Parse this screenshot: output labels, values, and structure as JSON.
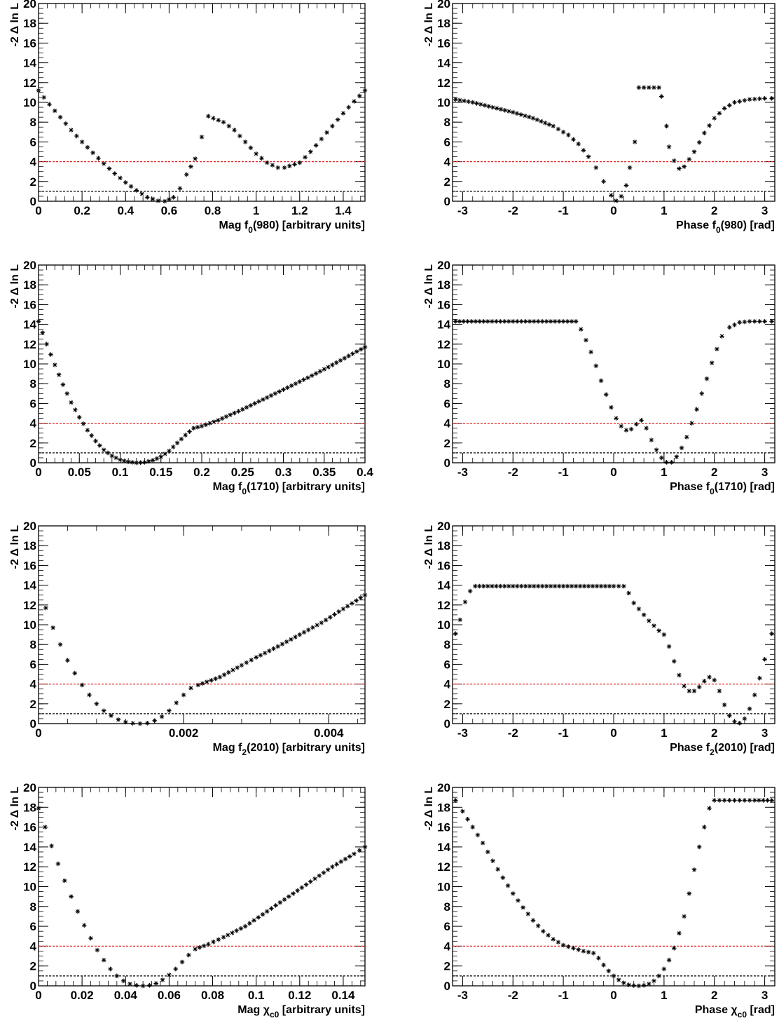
{
  "chart_data": [
    {
      "type": "scatter",
      "xlabel": "Mag f0(980) [arbitrary units]",
      "xlabel_parts": [
        "Mag f",
        "0",
        "(980) [arbitrary units]"
      ],
      "ylabel": "-2 Δ ln L",
      "xlim": [
        0,
        1.5
      ],
      "ylim": [
        0,
        20
      ],
      "xticks": [
        0,
        0.2,
        0.4,
        0.6,
        0.8,
        1,
        1.2,
        1.4
      ],
      "xtick_labels": [
        "0",
        "0.2",
        "0.4",
        "0.6",
        "0.8",
        "1",
        "1.2",
        "1.4"
      ],
      "yticks": [
        0,
        2,
        4,
        6,
        8,
        10,
        12,
        14,
        16,
        18,
        20
      ],
      "ytick_labels": [
        "0",
        "2",
        "4",
        "6",
        "8",
        "10",
        "12",
        "14",
        "16",
        "18",
        "20"
      ],
      "reference_lines": [
        {
          "y": 4,
          "color": "#e02020",
          "style": "dashed"
        },
        {
          "y": 1,
          "color": "#000000",
          "style": "dashed"
        }
      ],
      "series": [
        {
          "x": [
            0,
            0.05,
            0.1,
            0.15,
            0.2,
            0.25,
            0.3,
            0.35,
            0.4,
            0.45,
            0.5,
            0.55,
            0.58,
            0.62,
            0.65,
            0.68,
            0.72,
            0.75,
            0.78,
            0.85,
            0.9,
            0.95,
            1.0,
            1.05,
            1.1,
            1.13,
            1.2,
            1.25,
            1.3,
            1.35,
            1.4,
            1.45,
            1.5
          ],
          "y": [
            11.2,
            9.8,
            8.5,
            7.2,
            6.0,
            4.9,
            3.8,
            2.8,
            1.9,
            1.1,
            0.4,
            0.05,
            0.0,
            0.4,
            1.3,
            2.7,
            4.3,
            6.5,
            8.6,
            8.0,
            7.2,
            6.0,
            4.8,
            3.9,
            3.4,
            3.4,
            3.9,
            5.0,
            6.3,
            7.6,
            8.9,
            10.1,
            11.2
          ]
        }
      ]
    },
    {
      "type": "scatter",
      "xlabel": "Phase f0(980) [rad]",
      "xlabel_parts": [
        "Phase f",
        "0",
        "(980) [rad]"
      ],
      "ylabel": "-2 Δ ln L",
      "xlim": [
        -3.2,
        3.2
      ],
      "ylim": [
        0,
        20
      ],
      "xticks": [
        -3,
        -2,
        -1,
        0,
        1,
        2,
        3
      ],
      "xtick_labels": [
        "-3",
        "-2",
        "-1",
        "0",
        "1",
        "2",
        "3"
      ],
      "yticks": [
        0,
        2,
        4,
        6,
        8,
        10,
        12,
        14,
        16,
        18,
        20
      ],
      "ytick_labels": [
        "0",
        "2",
        "4",
        "6",
        "8",
        "10",
        "12",
        "14",
        "16",
        "18",
        "20"
      ],
      "reference_lines": [
        {
          "y": 4,
          "color": "#e02020",
          "style": "dashed"
        },
        {
          "y": 1,
          "color": "#000000",
          "style": "dashed"
        }
      ],
      "series": [
        {
          "x": [
            -3.14,
            -2.8,
            -2.4,
            -2.0,
            -1.6,
            -1.2,
            -0.9,
            -0.7,
            -0.5,
            -0.35,
            -0.2,
            -0.05,
            0.05,
            0.15,
            0.25,
            0.32,
            0.42,
            0.5,
            0.6,
            0.7,
            0.8,
            0.9,
            0.95,
            1.05,
            1.1,
            1.2,
            1.3,
            1.4,
            1.6,
            1.8,
            2.0,
            2.2,
            2.4,
            2.7,
            3.0,
            3.14
          ],
          "y": [
            10.3,
            10.0,
            9.5,
            9.0,
            8.4,
            7.6,
            6.7,
            5.8,
            4.5,
            3.4,
            2.0,
            0.6,
            0.05,
            0.5,
            1.6,
            3.4,
            6.0,
            11.5,
            11.5,
            11.5,
            11.5,
            11.5,
            10.6,
            7.6,
            5.5,
            4.1,
            3.3,
            3.5,
            5.0,
            6.9,
            8.4,
            9.4,
            10.0,
            10.3,
            10.4,
            10.4
          ]
        }
      ]
    },
    {
      "type": "scatter",
      "xlabel": "Mag f0(1710) [arbitrary units]",
      "xlabel_parts": [
        "Mag f",
        "0",
        "(1710) [arbitrary units]"
      ],
      "ylabel": "-2 Δ ln L",
      "xlim": [
        0,
        0.4
      ],
      "ylim": [
        0,
        20
      ],
      "xticks": [
        0,
        0.05,
        0.1,
        0.15,
        0.2,
        0.25,
        0.3,
        0.35,
        0.4
      ],
      "xtick_labels": [
        "0",
        "0.05",
        "0.1",
        "0.15",
        "0.2",
        "0.25",
        "0.3",
        "0.35",
        "0.4"
      ],
      "yticks": [
        0,
        2,
        4,
        6,
        8,
        10,
        12,
        14,
        16,
        18,
        20
      ],
      "ytick_labels": [
        "0",
        "2",
        "4",
        "6",
        "8",
        "10",
        "12",
        "14",
        "16",
        "18",
        "20"
      ],
      "reference_lines": [
        {
          "y": 4,
          "color": "#e02020",
          "style": "dashed"
        },
        {
          "y": 1,
          "color": "#000000",
          "style": "dashed"
        }
      ],
      "series": [
        {
          "x": [
            0,
            0.01,
            0.02,
            0.03,
            0.04,
            0.05,
            0.06,
            0.07,
            0.08,
            0.09,
            0.1,
            0.11,
            0.12,
            0.13,
            0.14,
            0.15,
            0.16,
            0.17,
            0.18,
            0.19,
            0.2,
            0.22,
            0.25,
            0.28,
            0.3,
            0.33,
            0.36,
            0.38,
            0.4
          ],
          "y": [
            14.3,
            12.0,
            9.9,
            7.9,
            6.1,
            4.6,
            3.3,
            2.2,
            1.3,
            0.7,
            0.3,
            0.1,
            0.0,
            0.05,
            0.25,
            0.6,
            1.2,
            2.0,
            2.8,
            3.5,
            3.7,
            4.3,
            5.4,
            6.6,
            7.4,
            8.6,
            9.9,
            10.8,
            11.7
          ]
        }
      ]
    },
    {
      "type": "scatter",
      "xlabel": "Phase f0(1710) [rad]",
      "xlabel_parts": [
        "Phase f",
        "0",
        "(1710) [rad]"
      ],
      "ylabel": "-2 Δ ln L",
      "xlim": [
        -3.2,
        3.2
      ],
      "ylim": [
        0,
        20
      ],
      "xticks": [
        -3,
        -2,
        -1,
        0,
        1,
        2,
        3
      ],
      "xtick_labels": [
        "-3",
        "-2",
        "-1",
        "0",
        "1",
        "2",
        "3"
      ],
      "yticks": [
        0,
        2,
        4,
        6,
        8,
        10,
        12,
        14,
        16,
        18,
        20
      ],
      "ytick_labels": [
        "0",
        "2",
        "4",
        "6",
        "8",
        "10",
        "12",
        "14",
        "16",
        "18",
        "20"
      ],
      "reference_lines": [
        {
          "y": 4,
          "color": "#e02020",
          "style": "dashed"
        },
        {
          "y": 1,
          "color": "#000000",
          "style": "dashed"
        }
      ],
      "series": [
        {
          "x": [
            -3.14,
            -2.5,
            -2.0,
            -1.5,
            -1.0,
            -0.75,
            -0.65,
            -0.55,
            -0.45,
            -0.35,
            -0.25,
            -0.15,
            -0.05,
            0.05,
            0.15,
            0.25,
            0.35,
            0.45,
            0.55,
            0.65,
            0.75,
            0.85,
            0.95,
            1.05,
            1.15,
            1.25,
            1.35,
            1.45,
            1.55,
            1.65,
            1.75,
            1.85,
            1.95,
            2.05,
            2.15,
            2.3,
            2.5,
            2.7,
            3.0,
            3.14
          ],
          "y": [
            14.3,
            14.3,
            14.3,
            14.3,
            14.3,
            14.3,
            13.5,
            12.4,
            11.2,
            9.8,
            8.3,
            6.9,
            5.6,
            4.5,
            3.7,
            3.3,
            3.4,
            3.9,
            4.3,
            3.5,
            2.3,
            1.3,
            0.5,
            0.05,
            0.05,
            0.6,
            1.5,
            2.6,
            4.0,
            5.4,
            7.0,
            8.5,
            10.1,
            11.5,
            12.8,
            13.7,
            14.2,
            14.3,
            14.3,
            14.3
          ]
        }
      ]
    },
    {
      "type": "scatter",
      "xlabel": "Mag f2(2010) [arbitrary units]",
      "xlabel_parts": [
        "Mag f",
        "2",
        "(2010) [arbitrary units]"
      ],
      "ylabel": "-2 Δ ln L",
      "xlim": [
        0,
        0.0045
      ],
      "ylim": [
        0,
        20
      ],
      "xticks": [
        0,
        0.002,
        0.004
      ],
      "xtick_labels": [
        "0",
        "0.002",
        "0.004"
      ],
      "yticks": [
        0,
        2,
        4,
        6,
        8,
        10,
        12,
        14,
        16,
        18,
        20
      ],
      "ytick_labels": [
        "0",
        "2",
        "4",
        "6",
        "8",
        "10",
        "12",
        "14",
        "16",
        "18",
        "20"
      ],
      "reference_lines": [
        {
          "y": 4,
          "color": "#e02020",
          "style": "dashed"
        },
        {
          "y": 1,
          "color": "#000000",
          "style": "dashed"
        }
      ],
      "series": [
        {
          "x": [
            0.0001,
            0.0002,
            0.0003,
            0.0004,
            0.0005,
            0.0006,
            0.0007,
            0.0008,
            0.0009,
            0.001,
            0.0011,
            0.0012,
            0.0013,
            0.0014,
            0.0015,
            0.0016,
            0.0017,
            0.0018,
            0.0019,
            0.002,
            0.0021,
            0.0022,
            0.0025,
            0.0028,
            0.003,
            0.0033,
            0.0036,
            0.0039,
            0.0042,
            0.0045
          ],
          "y": [
            11.7,
            9.7,
            8.0,
            6.4,
            5.1,
            3.9,
            2.9,
            2.0,
            1.3,
            0.8,
            0.4,
            0.15,
            0.03,
            0.0,
            0.05,
            0.3,
            0.7,
            1.3,
            2.1,
            2.9,
            3.6,
            3.9,
            4.7,
            5.9,
            6.7,
            7.8,
            9.0,
            10.2,
            11.6,
            13.0
          ]
        }
      ]
    },
    {
      "type": "scatter",
      "xlabel": "Phase f2(2010) [rad]",
      "xlabel_parts": [
        "Phase f",
        "2",
        "(2010) [rad]"
      ],
      "ylabel": "-2 Δ ln L",
      "xlim": [
        -3.2,
        3.2
      ],
      "ylim": [
        0,
        20
      ],
      "xticks": [
        -3,
        -2,
        -1,
        0,
        1,
        2,
        3
      ],
      "xtick_labels": [
        "-3",
        "-2",
        "-1",
        "0",
        "1",
        "2",
        "3"
      ],
      "yticks": [
        0,
        2,
        4,
        6,
        8,
        10,
        12,
        14,
        16,
        18,
        20
      ],
      "ytick_labels": [
        "0",
        "2",
        "4",
        "6",
        "8",
        "10",
        "12",
        "14",
        "16",
        "18",
        "20"
      ],
      "reference_lines": [
        {
          "y": 4,
          "color": "#e02020",
          "style": "dashed"
        },
        {
          "y": 1,
          "color": "#000000",
          "style": "dashed"
        }
      ],
      "series": [
        {
          "x": [
            -3.14,
            -3.05,
            -2.95,
            -2.85,
            -2.75,
            -2.5,
            -2.0,
            -1.5,
            -1.0,
            -0.5,
            0.0,
            0.2,
            0.3,
            0.4,
            0.5,
            0.6,
            0.7,
            0.8,
            0.9,
            1.0,
            1.1,
            1.2,
            1.3,
            1.4,
            1.5,
            1.6,
            1.7,
            1.8,
            1.9,
            2.0,
            2.1,
            2.2,
            2.3,
            2.4,
            2.5,
            2.6,
            2.7,
            2.8,
            2.9,
            3.0,
            3.14
          ],
          "y": [
            9.1,
            10.5,
            12.3,
            13.4,
            13.9,
            13.9,
            13.9,
            13.9,
            13.9,
            13.9,
            13.9,
            13.9,
            13.2,
            12.2,
            11.6,
            11.0,
            10.4,
            9.9,
            9.4,
            9.0,
            7.8,
            6.3,
            4.9,
            3.8,
            3.3,
            3.3,
            3.7,
            4.3,
            4.7,
            4.4,
            3.3,
            1.9,
            0.8,
            0.2,
            0.05,
            0.5,
            1.5,
            2.9,
            4.6,
            6.5,
            9.1
          ]
        }
      ]
    },
    {
      "type": "scatter",
      "xlabel": "Mag χc0 [arbitrary units]",
      "xlabel_parts": [
        "Mag χ",
        "c0",
        " [arbitrary units]"
      ],
      "ylabel": "-2 Δ ln L",
      "xlim": [
        0,
        0.15
      ],
      "ylim": [
        0,
        20
      ],
      "xticks": [
        0,
        0.02,
        0.04,
        0.06,
        0.08,
        0.1,
        0.12,
        0.14
      ],
      "xtick_labels": [
        "0",
        "0.02",
        "0.04",
        "0.06",
        "0.08",
        "0.1",
        "0.12",
        "0.14"
      ],
      "yticks": [
        0,
        2,
        4,
        6,
        8,
        10,
        12,
        14,
        16,
        18,
        20
      ],
      "ytick_labels": [
        "0",
        "2",
        "4",
        "6",
        "8",
        "10",
        "12",
        "14",
        "16",
        "18",
        "20"
      ],
      "reference_lines": [
        {
          "y": 4,
          "color": "#e02020",
          "style": "dashed"
        },
        {
          "y": 1,
          "color": "#000000",
          "style": "dashed"
        }
      ],
      "series": [
        {
          "x": [
            0.0,
            0.003,
            0.006,
            0.009,
            0.012,
            0.015,
            0.018,
            0.021,
            0.024,
            0.027,
            0.03,
            0.033,
            0.036,
            0.039,
            0.042,
            0.045,
            0.048,
            0.051,
            0.054,
            0.057,
            0.06,
            0.063,
            0.066,
            0.069,
            0.072,
            0.078,
            0.085,
            0.095,
            0.105,
            0.115,
            0.125,
            0.135,
            0.145,
            0.15
          ],
          "y": [
            17.9,
            16.0,
            14.1,
            12.3,
            10.6,
            9.0,
            7.5,
            6.1,
            4.8,
            3.6,
            2.6,
            1.7,
            1.0,
            0.5,
            0.2,
            0.05,
            0.0,
            0.05,
            0.25,
            0.6,
            1.1,
            1.7,
            2.4,
            3.1,
            3.7,
            4.2,
            4.9,
            6.0,
            7.5,
            9.0,
            10.5,
            12.0,
            13.3,
            14.0
          ]
        }
      ]
    },
    {
      "type": "scatter",
      "xlabel": "Phase χc0 [rad]",
      "xlabel_parts": [
        "Phase χ",
        "c0",
        " [rad]"
      ],
      "ylabel": "-2 Δ ln L",
      "xlim": [
        -3.2,
        3.2
      ],
      "ylim": [
        0,
        20
      ],
      "xticks": [
        -3,
        -2,
        -1,
        0,
        1,
        2,
        3
      ],
      "xtick_labels": [
        "-3",
        "-2",
        "-1",
        "0",
        "1",
        "2",
        "3"
      ],
      "yticks": [
        0,
        2,
        4,
        6,
        8,
        10,
        12,
        14,
        16,
        18,
        20
      ],
      "ytick_labels": [
        "0",
        "2",
        "4",
        "6",
        "8",
        "10",
        "12",
        "14",
        "16",
        "18",
        "20"
      ],
      "reference_lines": [
        {
          "y": 4,
          "color": "#e02020",
          "style": "dashed"
        },
        {
          "y": 1,
          "color": "#000000",
          "style": "dashed"
        }
      ],
      "series": [
        {
          "x": [
            -3.14,
            -3.0,
            -2.8,
            -2.6,
            -2.4,
            -2.2,
            -2.0,
            -1.8,
            -1.6,
            -1.4,
            -1.2,
            -1.0,
            -0.8,
            -0.6,
            -0.4,
            -0.3,
            -0.2,
            -0.1,
            0.0,
            0.1,
            0.2,
            0.3,
            0.4,
            0.5,
            0.6,
            0.7,
            0.8,
            0.9,
            1.0,
            1.1,
            1.2,
            1.3,
            1.4,
            1.5,
            1.6,
            1.7,
            1.8,
            1.9,
            2.0,
            2.2,
            2.5,
            2.8,
            3.14
          ],
          "y": [
            18.7,
            17.6,
            16.0,
            14.4,
            12.6,
            10.9,
            9.3,
            7.9,
            6.6,
            5.5,
            4.7,
            4.1,
            3.8,
            3.5,
            3.3,
            2.8,
            2.1,
            1.5,
            1.0,
            0.6,
            0.3,
            0.1,
            0.03,
            0.0,
            0.05,
            0.2,
            0.5,
            1.0,
            1.7,
            2.6,
            3.8,
            5.3,
            7.0,
            9.3,
            11.7,
            14.0,
            16.0,
            17.9,
            18.7,
            18.7,
            18.7,
            18.7,
            18.7
          ]
        }
      ]
    }
  ]
}
